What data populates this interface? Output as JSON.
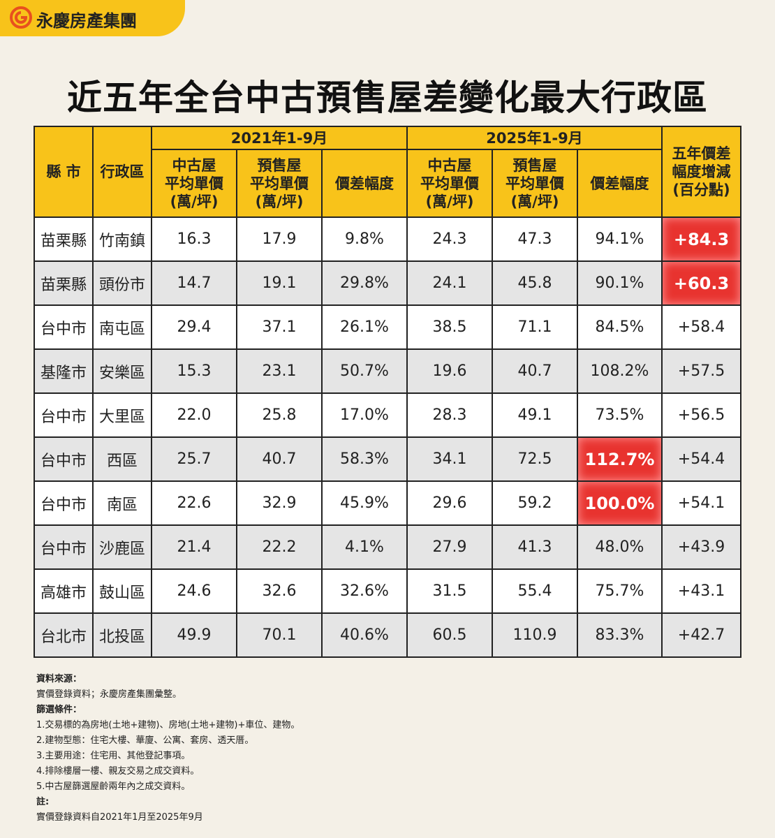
{
  "brand": "永慶房產集團",
  "title": {
    "lead": "近五年全台中古預售屋",
    "emphasis": "差變化最大行政區"
  },
  "table": {
    "group_headers": [
      "2021年1-9月",
      "2025年1-9月"
    ],
    "headers": [
      "縣 市",
      "行政區",
      "中古屋\n平均單價\n(萬/坪)",
      "預售屋\n平均單價\n(萬/坪)",
      "價差幅度",
      "中古屋\n平均單價\n(萬/坪)",
      "預售屋\n平均單價\n(萬/坪)",
      "價差幅度",
      "五年價差\n幅度增減\n(百分點)"
    ],
    "rows": [
      [
        "苗栗縣",
        "竹南鎮",
        "16.3",
        "17.9",
        "9.8%",
        "24.3",
        "47.3",
        "94.1%",
        "+84.3"
      ],
      [
        "苗栗縣",
        "頭份市",
        "14.7",
        "19.1",
        "29.8%",
        "24.1",
        "45.8",
        "90.1%",
        "+60.3"
      ],
      [
        "台中市",
        "南屯區",
        "29.4",
        "37.1",
        "26.1%",
        "38.5",
        "71.1",
        "84.5%",
        "+58.4"
      ],
      [
        "基隆市",
        "安樂區",
        "15.3",
        "23.1",
        "50.7%",
        "19.6",
        "40.7",
        "108.2%",
        "+57.5"
      ],
      [
        "台中市",
        "大里區",
        "22.0",
        "25.8",
        "17.0%",
        "28.3",
        "49.1",
        "73.5%",
        "+56.5"
      ],
      [
        "台中市",
        "西區",
        "25.7",
        "40.7",
        "58.3%",
        "34.1",
        "72.5",
        "112.7%",
        "+54.4"
      ],
      [
        "台中市",
        "南區",
        "22.6",
        "32.9",
        "45.9%",
        "29.6",
        "59.2",
        "100.0%",
        "+54.1"
      ],
      [
        "台中市",
        "沙鹿區",
        "21.4",
        "22.2",
        "4.1%",
        "27.9",
        "41.3",
        "48.0%",
        "+43.9"
      ],
      [
        "高雄市",
        "鼓山區",
        "24.6",
        "32.6",
        "32.6%",
        "31.5",
        "55.4",
        "75.7%",
        "+43.1"
      ],
      [
        "台北市",
        "北投區",
        "49.9",
        "70.1",
        "40.6%",
        "60.5",
        "110.9",
        "83.3%",
        "+42.7"
      ]
    ],
    "highlights": [
      {
        "row": 0,
        "col": 8
      },
      {
        "row": 1,
        "col": 8
      },
      {
        "row": 5,
        "col": 7
      },
      {
        "row": 6,
        "col": 7
      }
    ]
  },
  "notes": [
    {
      "heading": "資料來源：",
      "lines": [
        "實價登錄資料；永慶房產集團彙整。"
      ]
    },
    {
      "heading": "篩選條件：",
      "lines": [
        "1.交易標的為房地(土地+建物)、房地(土地+建物)+車位、建物。",
        "2.建物型態：住宅大樓、華廈、公寓、套房、透天厝。",
        "3.主要用途：住宅用、其他登記事項。",
        "4.排除樓層一樓、親友交易之成交資料。",
        "5.中古屋篩選屋齡兩年內之成交資料。"
      ]
    },
    {
      "heading": "註:",
      "lines": [
        "實價登錄資料自2021年1月至2025年9月"
      ]
    }
  ]
}
